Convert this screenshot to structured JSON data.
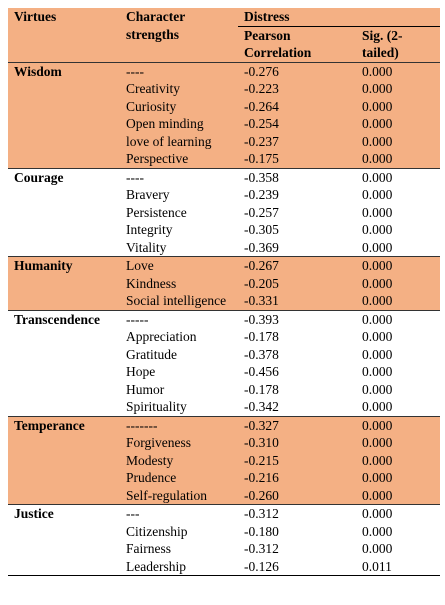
{
  "header": {
    "virtues": "Virtues",
    "strengths": "Character strengths",
    "distress": "Distress",
    "pearson": "Pearson Correlation",
    "sig": "Sig. (2-tailed)"
  },
  "groups": [
    {
      "name": "Wisdom",
      "rows": [
        [
          "----",
          "-0.276",
          "0.000"
        ],
        [
          "Creativity",
          "-0.223",
          "0.000"
        ],
        [
          "Curiosity",
          "-0.264",
          "0.000"
        ],
        [
          "Open minding",
          "-0.254",
          "0.000"
        ],
        [
          "love of learning",
          "-0.237",
          "0.000"
        ],
        [
          "Perspective",
          "-0.175",
          "0.000"
        ]
      ]
    },
    {
      "name": "Courage",
      "rows": [
        [
          "----",
          "-0.358",
          "0.000"
        ],
        [
          "Bravery",
          "-0.239",
          "0.000"
        ],
        [
          "Persistence",
          "-0.257",
          "0.000"
        ],
        [
          "Integrity",
          "-0.305",
          "0.000"
        ],
        [
          "Vitality",
          "-0.369",
          "0.000"
        ]
      ]
    },
    {
      "name": "Humanity",
      "rows": [
        [
          "Love",
          "-0.267",
          "0.000"
        ],
        [
          "Kindness",
          "-0.205",
          "0.000"
        ],
        [
          "Social intelligence",
          "-0.331",
          "0.000"
        ]
      ]
    },
    {
      "name": "Transcendence",
      "rows": [
        [
          "-----",
          "-0.393",
          "0.000"
        ],
        [
          "Appreciation",
          "-0.178",
          "0.000"
        ],
        [
          "Gratitude",
          "-0.378",
          "0.000"
        ],
        [
          "Hope",
          "-0.456",
          "0.000"
        ],
        [
          "Humor",
          "-0.178",
          "0.000"
        ],
        [
          "Spirituality",
          "-0.342",
          "0.000"
        ]
      ]
    },
    {
      "name": "Temperance",
      "rows": [
        [
          "-------",
          "-0.327",
          "0.000"
        ],
        [
          "Forgiveness",
          "-0.310",
          "0.000"
        ],
        [
          "Modesty",
          "-0.215",
          "0.000"
        ],
        [
          "Prudence",
          "-0.216",
          "0.000"
        ],
        [
          "Self-regulation",
          "-0.260",
          "0.000"
        ]
      ]
    },
    {
      "name": "Justice",
      "rows": [
        [
          "---",
          "-0.312",
          "0.000"
        ],
        [
          "Citizenship",
          "-0.180",
          "0.000"
        ],
        [
          "Fairness",
          "-0.312",
          "0.000"
        ],
        [
          "Leadership",
          "-0.126",
          "0.011"
        ]
      ]
    }
  ]
}
